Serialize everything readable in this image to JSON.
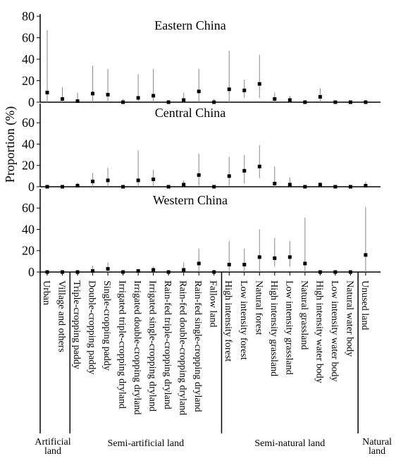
{
  "chart_data": {
    "type": "errorbar",
    "ylabel": "Proportion (%)",
    "categories": [
      "Urban",
      "Village and others",
      "Triple-cropping paddy",
      "Double-cropping paddy",
      "Single-cropping paddy",
      "Irrigated triple-cropping dryland",
      "Irrigated double-cropping dryland",
      "Irrigated single-cropping dryland",
      "Rain-fed triple-cropping dryland",
      "Rain-fed double-cropping dryland",
      "Rain-fed single-cropping dryland",
      "Fallow land",
      "High intensity forest",
      "Low intensity forest",
      "Natural forest",
      "High intensity grassland",
      "Low intensity grassland",
      "Natural grassland",
      "High intensity water body",
      "Low intensity water body",
      "Natural water body",
      "Unused land"
    ],
    "groups": [
      {
        "name": "Artificial land",
        "start": 0,
        "end": 1
      },
      {
        "name": "Semi-artificial land",
        "start": 2,
        "end": 11
      },
      {
        "name": "Semi-natural land",
        "start": 12,
        "end": 20
      },
      {
        "name": "Natural land",
        "start": 21,
        "end": 21
      }
    ],
    "color": "#000000",
    "panels": [
      {
        "title": "Eastern China",
        "ylim": [
          0,
          82
        ],
        "yticks": [
          0,
          20,
          40,
          60,
          80
        ],
        "values": [
          9,
          3,
          1,
          8,
          7,
          0,
          4,
          6,
          0,
          2,
          10,
          0,
          12,
          11,
          17,
          3,
          2,
          0,
          5,
          0,
          0,
          0
        ],
        "low": [
          0,
          0,
          0,
          0,
          0,
          0,
          0,
          0,
          0,
          0,
          0,
          0,
          0,
          4,
          4,
          0,
          0,
          0,
          0,
          0,
          0,
          0
        ],
        "high": [
          67,
          14,
          9,
          34,
          31,
          3,
          26,
          31,
          2,
          9,
          31,
          3,
          48,
          21,
          44,
          9,
          6,
          2,
          13,
          1,
          0,
          2
        ]
      },
      {
        "title": "Central China",
        "ylim": [
          0,
          78
        ],
        "yticks": [
          0,
          20,
          40,
          60
        ],
        "values": [
          0,
          0,
          1,
          5,
          6,
          0,
          6,
          7,
          0,
          2,
          11,
          0,
          10,
          15,
          19,
          3,
          2,
          0,
          2,
          0,
          0,
          1
        ],
        "low": [
          0,
          0,
          0,
          0,
          0,
          0,
          0,
          1,
          0,
          0,
          1,
          0,
          1,
          3,
          8,
          0,
          0,
          0,
          0,
          0,
          0,
          0
        ],
        "high": [
          1,
          0,
          4,
          13,
          18,
          1,
          34,
          16,
          1,
          6,
          31,
          0,
          28,
          30,
          39,
          19,
          9,
          1,
          4,
          0,
          0,
          5
        ]
      },
      {
        "title": "Western China",
        "ylim": [
          0,
          78
        ],
        "yticks": [
          0,
          20,
          40,
          60
        ],
        "values": [
          0,
          0,
          0,
          1,
          3,
          0,
          1,
          2,
          0,
          2,
          8,
          0,
          7,
          7,
          14,
          13,
          14,
          8,
          0,
          0,
          0,
          16
        ],
        "low": [
          0,
          0,
          0,
          0,
          0,
          0,
          0,
          0,
          0,
          0,
          0,
          0,
          0,
          0,
          0,
          5,
          5,
          0,
          0,
          0,
          0,
          0
        ],
        "high": [
          0,
          0,
          0,
          6,
          9,
          0,
          3,
          5,
          0,
          9,
          22,
          2,
          29,
          22,
          40,
          32,
          29,
          51,
          1,
          1,
          0,
          61
        ]
      }
    ]
  }
}
